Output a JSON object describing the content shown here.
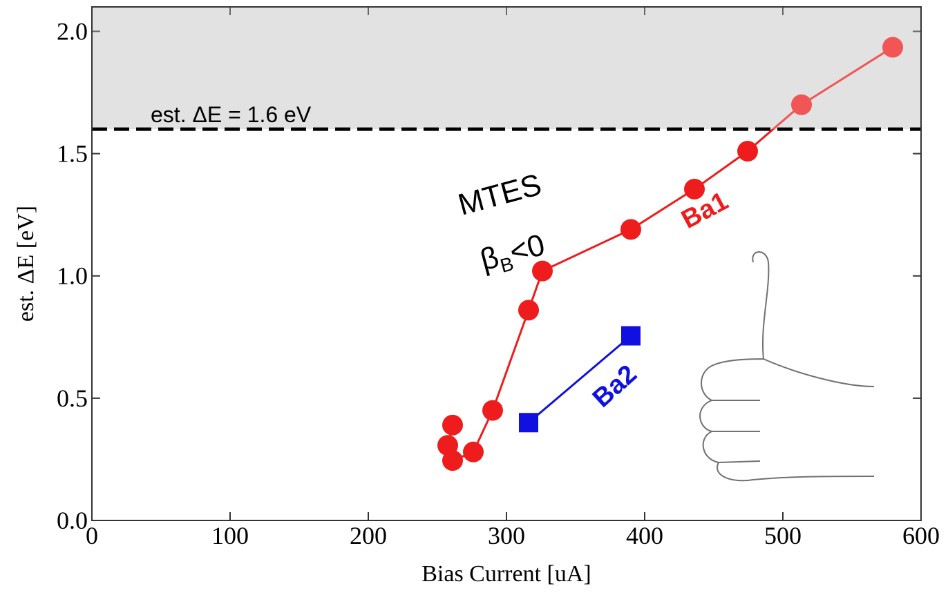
{
  "chart_data": {
    "type": "line",
    "xlabel": "Bias Current [uA]",
    "ylabel": "est. ΔE [eV]",
    "xlim": [
      0,
      600
    ],
    "ylim": [
      0,
      2.1
    ],
    "xticks": [
      0,
      100,
      200,
      300,
      400,
      500,
      600
    ],
    "yticks": [
      {
        "value": 0,
        "label": "0.0"
      },
      0.5,
      {
        "value": 1,
        "label": "1.0"
      },
      1.5,
      {
        "value": 2,
        "label": "2.0"
      }
    ],
    "threshold": {
      "value": 1.6,
      "label": "est. ΔE = 1.6 eV",
      "shade": "#d9d9d9"
    },
    "annotations": {
      "device": "MTES",
      "beta": "β",
      "beta_sub": "B",
      "beta_rest": "<0"
    },
    "series": [
      {
        "name": "Ba1",
        "color": "#ee1c1c",
        "marker": "circle",
        "x": [
          261,
          257.5,
          261,
          276,
          290,
          316,
          326,
          390,
          436,
          474.5,
          513.5,
          579.5
        ],
        "values": [
          0.39,
          0.307,
          0.245,
          0.28,
          0.45,
          0.86,
          1.02,
          1.19,
          1.355,
          1.51,
          1.7,
          1.935
        ]
      },
      {
        "name": "Ba2",
        "color": "#1010e0",
        "marker": "square",
        "x": [
          316,
          390
        ],
        "values": [
          0.4,
          0.755
        ]
      }
    ]
  }
}
